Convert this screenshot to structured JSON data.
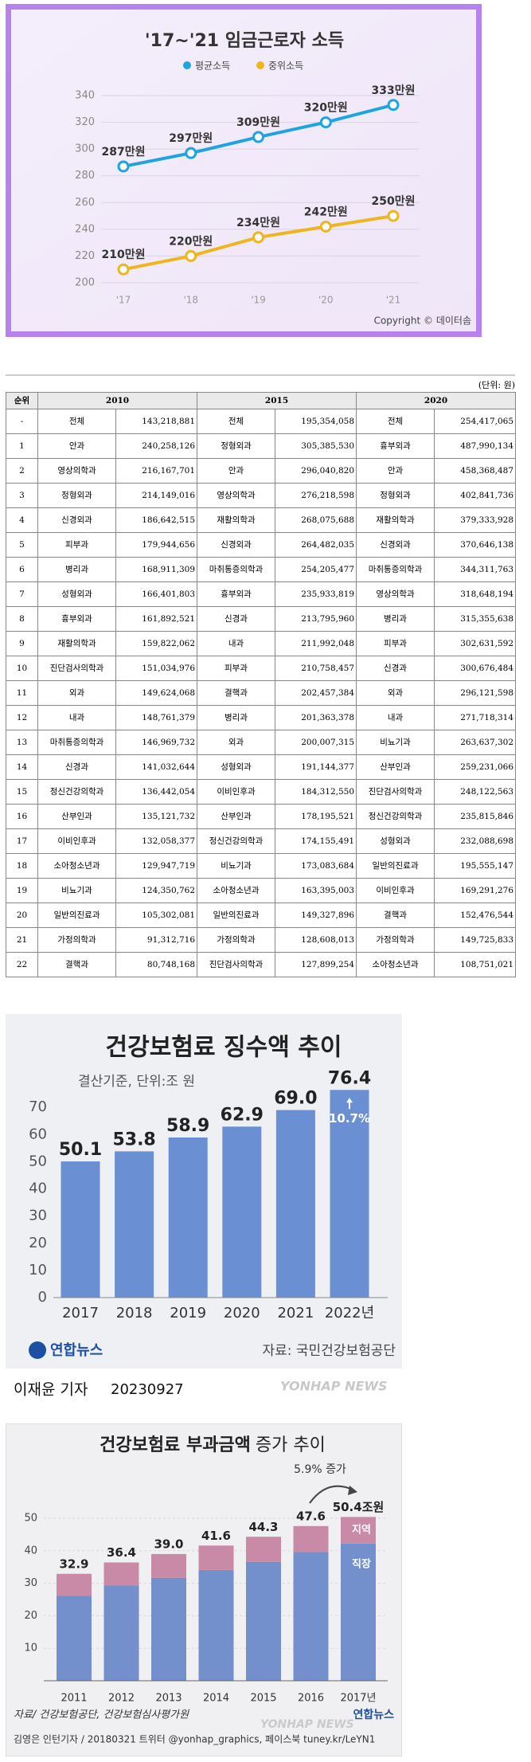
{
  "chart_data": [
    {
      "type": "line",
      "title": "'17~'21 임금근로자 소득",
      "categories": [
        "'17",
        "'18",
        "'19",
        "'20",
        "'21"
      ],
      "series": [
        {
          "name": "평균소득",
          "color": "#1ea4e0",
          "values": [
            287,
            297,
            309,
            320,
            333
          ],
          "value_labels": [
            "287만원",
            "297만원",
            "309만원",
            "320만원",
            "333만원"
          ]
        },
        {
          "name": "중위소득",
          "color": "#eeb51f",
          "values": [
            210,
            220,
            234,
            242,
            250
          ],
          "value_labels": [
            "210만원",
            "220만원",
            "234만원",
            "242만원",
            "250만원"
          ]
        }
      ],
      "ylim": [
        200,
        340
      ],
      "yticks": [
        200,
        220,
        240,
        260,
        280,
        300,
        320,
        340
      ],
      "grid": true,
      "legend": "top",
      "copyright": "Copyright © 데이터솜"
    },
    {
      "type": "bar",
      "title": "건강보험료 징수액 추이",
      "subtitle": "결산기준, 단위:조 원",
      "categories": [
        "2017",
        "2018",
        "2019",
        "2020",
        "2021",
        "2022년"
      ],
      "values": [
        50.1,
        53.8,
        58.9,
        62.9,
        69.0,
        76.4
      ],
      "value_labels": [
        "50.1",
        "53.8",
        "58.9",
        "62.9",
        "69.0",
        "76.4"
      ],
      "color": "#6a90d3",
      "ylim": [
        0,
        80
      ],
      "yticks": [
        0,
        10,
        20,
        30,
        40,
        50,
        60,
        70
      ],
      "grid": false,
      "annotation": "10.7%",
      "logo": "연합뉴스",
      "source": "자료: 국민건강보험공단",
      "reporter": "이재윤 기자",
      "date": "20230927",
      "watermark": "YONHAP NEWS"
    },
    {
      "type": "stacked_bar",
      "title": "건강보험료 부과금액",
      "title_suffix": "증가 추이",
      "categories": [
        "2011",
        "2012",
        "2013",
        "2014",
        "2015",
        "2016",
        "2017년"
      ],
      "series": [
        {
          "name": "직장",
          "color": "#7390cc",
          "values": [
            26.2,
            29.3,
            31.7,
            34.1,
            36.6,
            39.6,
            42.2
          ]
        },
        {
          "name": "지역",
          "color": "#c98aa8",
          "values": [
            6.7,
            7.1,
            7.3,
            7.5,
            7.7,
            8.0,
            8.2
          ]
        }
      ],
      "totals": [
        32.9,
        36.4,
        39.0,
        41.6,
        44.3,
        47.6,
        50.4
      ],
      "total_labels": [
        "32.9",
        "36.4",
        "39.0",
        "41.6",
        "44.3",
        "47.6",
        "50.4조원"
      ],
      "ylim": [
        0,
        55
      ],
      "yticks": [
        10,
        20,
        30,
        40,
        50
      ],
      "grid": true,
      "annotation": "5.9% 증가",
      "source": "자료/ 건강보험공단, 건강보험심사평가원",
      "credit": "김영은 인턴기자 / 20180321   트위터 @yonhap_graphics, 페이스북 tuney.kr/LeYN1",
      "logo": "연합뉴스",
      "watermark": "YONHAP NEWS"
    }
  ],
  "table": {
    "unit": "(단위: 원)",
    "header": [
      "순위",
      "2010",
      "2015",
      "2020"
    ],
    "rows": [
      [
        "-",
        "전체",
        "143,218,881",
        "전체",
        "195,354,058",
        "전체",
        "254,417,065"
      ],
      [
        "1",
        "안과",
        "240,258,126",
        "정형외과",
        "305,385,530",
        "흉부외과",
        "487,990,134"
      ],
      [
        "2",
        "영상의학과",
        "216,167,701",
        "안과",
        "296,040,820",
        "안과",
        "458,368,487"
      ],
      [
        "3",
        "정형외과",
        "214,149,016",
        "영상의학과",
        "276,218,598",
        "정형외과",
        "402,841,736"
      ],
      [
        "4",
        "신경외과",
        "186,642,515",
        "재활의학과",
        "268,075,688",
        "재활의학과",
        "379,333,928"
      ],
      [
        "5",
        "피부과",
        "179,944,656",
        "신경외과",
        "264,482,035",
        "신경외과",
        "370,646,138"
      ],
      [
        "6",
        "병리과",
        "168,911,309",
        "마취통증의학과",
        "254,205,477",
        "마취통증의학과",
        "344,311,763"
      ],
      [
        "7",
        "성형외과",
        "166,401,803",
        "흉부외과",
        "235,933,819",
        "영상의학과",
        "318,648,194"
      ],
      [
        "8",
        "흉부외과",
        "161,892,521",
        "신경과",
        "213,795,960",
        "병리과",
        "315,355,638"
      ],
      [
        "9",
        "재활의학과",
        "159,822,062",
        "내과",
        "211,992,048",
        "피부과",
        "302,631,592"
      ],
      [
        "10",
        "진단검사의학과",
        "151,034,976",
        "피부과",
        "210,758,457",
        "신경과",
        "300,676,484"
      ],
      [
        "11",
        "외과",
        "149,624,068",
        "결핵과",
        "202,457,384",
        "외과",
        "296,121,598"
      ],
      [
        "12",
        "내과",
        "148,761,379",
        "병리과",
        "201,363,378",
        "내과",
        "271,718,314"
      ],
      [
        "13",
        "마취통증의학과",
        "146,969,732",
        "외과",
        "200,007,315",
        "비뇨기과",
        "263,637,302"
      ],
      [
        "14",
        "신경과",
        "141,032,644",
        "성형외과",
        "191,144,377",
        "산부인과",
        "259,231,066"
      ],
      [
        "15",
        "정신건강의학과",
        "136,442,054",
        "이비인후과",
        "184,312,550",
        "진단검사의학과",
        "248,122,563"
      ],
      [
        "16",
        "산부인과",
        "135,121,732",
        "산부인과",
        "178,195,521",
        "정신건강의학과",
        "235,815,846"
      ],
      [
        "17",
        "이비인후과",
        "132,058,377",
        "정신건강의학과",
        "174,155,491",
        "성형외과",
        "232,088,698"
      ],
      [
        "18",
        "소아청소년과",
        "129,947,719",
        "비뇨기과",
        "173,083,684",
        "일반의진료과",
        "195,555,147"
      ],
      [
        "19",
        "비뇨기과",
        "124,350,762",
        "소아청소년과",
        "163,395,003",
        "이비인후과",
        "169,291,276"
      ],
      [
        "20",
        "일반의진료과",
        "105,302,081",
        "일반의진료과",
        "149,327,896",
        "결핵과",
        "152,476,544"
      ],
      [
        "21",
        "가정의학과",
        "91,312,716",
        "가정의학과",
        "128,608,013",
        "가정의학과",
        "149,725,833"
      ],
      [
        "22",
        "결핵과",
        "80,748,168",
        "진단검사의학과",
        "127,899,254",
        "소아청소년과",
        "108,751,021"
      ]
    ]
  }
}
